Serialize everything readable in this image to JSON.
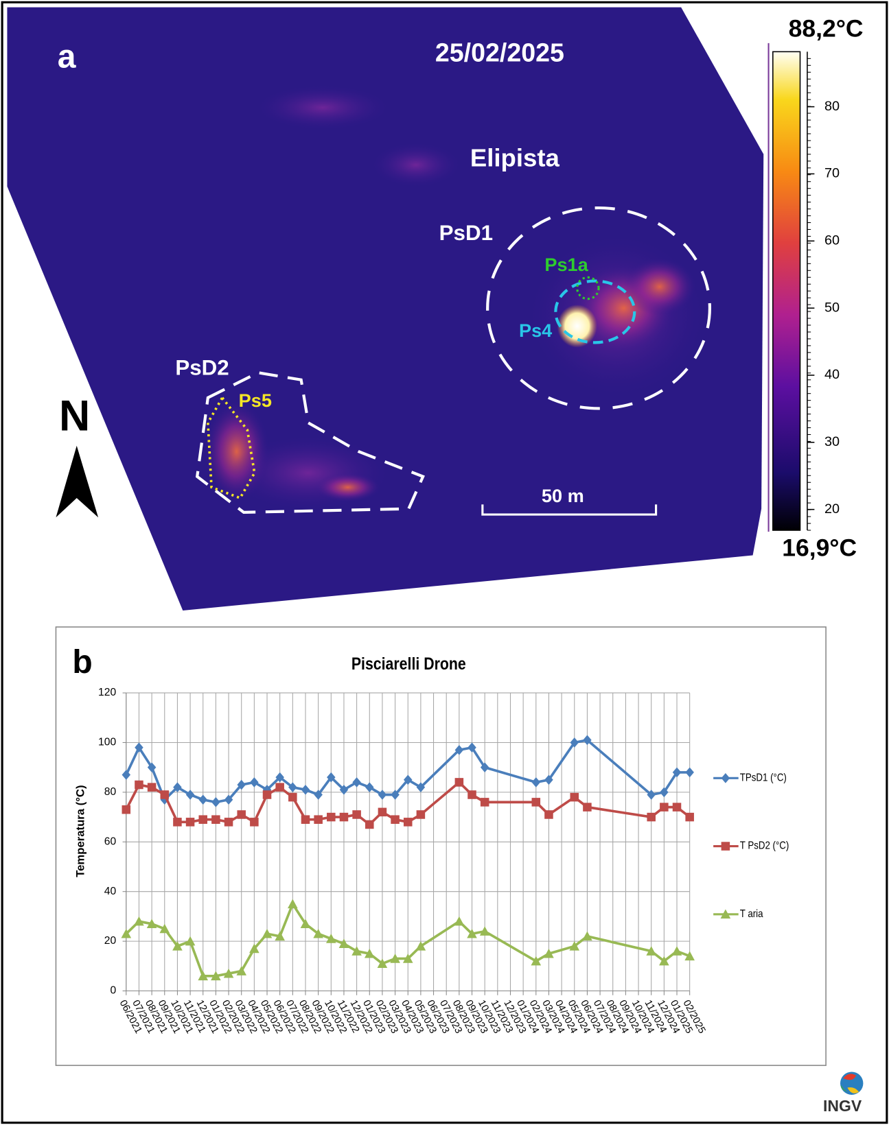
{
  "panel_a": {
    "label": "a",
    "date": "25/02/2025",
    "site": "Elipista",
    "annotations": [
      "PsD1",
      "Ps1a",
      "Ps4",
      "PsD2",
      "Ps5"
    ],
    "north": "N",
    "scale_bar": "50 m",
    "colorbar": {
      "clim": [
        16.9,
        88.2
      ],
      "clim_labels": [
        "16,9°C",
        "88,2°C"
      ],
      "ticks": [
        20,
        30,
        40,
        50,
        60,
        70,
        80
      ]
    }
  },
  "chart_data": {
    "type": "line",
    "panel_label": "b",
    "title": "Pisciarelli Drone",
    "ylabel": "Temperatura (°C)",
    "categories": [
      "06/2021",
      "07/2021",
      "08/2021",
      "09/2021",
      "10/2021",
      "11/2021",
      "12/2021",
      "01/2022",
      "02/2022",
      "03/2022",
      "04/2022",
      "05/2022",
      "06/2022",
      "07/2022",
      "08/2022",
      "09/2022",
      "10/2022",
      "11/2022",
      "12/2022",
      "01/2023",
      "02/2023",
      "03/2023",
      "04/2023",
      "05/2023",
      "06/2023",
      "07/2023",
      "08/2023",
      "09/2023",
      "10/2023",
      "11/2023",
      "12/2023",
      "01/2024",
      "02/2024",
      "03/2024",
      "04/2024",
      "05/2024",
      "06/2024",
      "07/2024",
      "08/2024",
      "09/2024",
      "10/2024",
      "11/2024",
      "12/2024",
      "01/2025",
      "02/2025"
    ],
    "x": [
      "06/2021",
      "07/2021",
      "08/2021",
      "09/2021",
      "10/2021",
      "11/2021",
      "12/2021",
      "01/2022",
      "02/2022",
      "03/2022",
      "04/2022",
      "05/2022",
      "06/2022",
      "07/2022",
      "08/2022",
      "09/2022",
      "10/2022",
      "11/2022",
      "12/2022",
      "01/2023",
      "02/2023",
      "03/2023",
      "04/2023",
      "05/2023",
      "08/2023",
      "09/2023",
      "10/2023",
      "02/2024",
      "03/2024",
      "05/2024",
      "06/2024",
      "11/2024",
      "12/2024",
      "01/2025",
      "02/2025"
    ],
    "series": [
      {
        "name": "TPsD1 (°C)",
        "color": "#4a7ebb",
        "marker": "diamond",
        "values": [
          87,
          98,
          90,
          77,
          82,
          79,
          77,
          76,
          77,
          83,
          84,
          81,
          86,
          82,
          81,
          79,
          86,
          81,
          84,
          82,
          79,
          79,
          85,
          82,
          97,
          98,
          90,
          84,
          85,
          100,
          101,
          79,
          80,
          88,
          88
        ]
      },
      {
        "name": "T PsD2 (°C)",
        "color": "#be4b48",
        "marker": "square",
        "values": [
          73,
          83,
          82,
          79,
          68,
          68,
          69,
          69,
          68,
          71,
          68,
          79,
          82,
          78,
          69,
          69,
          70,
          70,
          71,
          67,
          72,
          69,
          68,
          71,
          84,
          79,
          76,
          76,
          71,
          78,
          74,
          70,
          74,
          74,
          70
        ]
      },
      {
        "name": "T aria",
        "color": "#98b954",
        "marker": "triangle",
        "values": [
          23,
          28,
          27,
          25,
          18,
          20,
          6,
          6,
          7,
          8,
          17,
          23,
          22,
          35,
          27,
          23,
          21,
          19,
          16,
          15,
          11,
          13,
          13,
          18,
          28,
          23,
          24,
          12,
          15,
          18,
          22,
          16,
          12,
          16,
          14
        ]
      }
    ],
    "ylim": [
      0,
      120
    ],
    "yticks": [
      0,
      20,
      40,
      60,
      80,
      100,
      120
    ],
    "grid": true,
    "legend": "right"
  },
  "logo": "INGV"
}
